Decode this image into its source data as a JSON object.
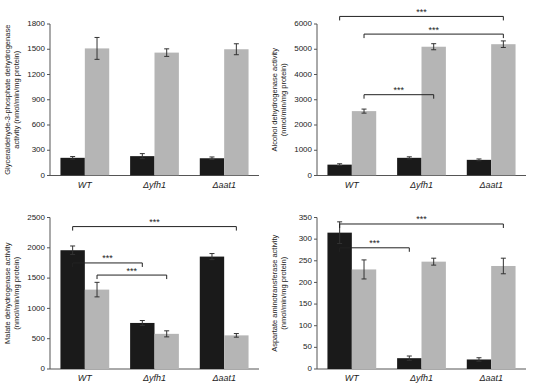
{
  "chart_data": [
    {
      "type": "bar",
      "ylabel": "Glyceraldehyde-3-phosphate dehydrogenase\nactivity (nmol/min/mg protein)",
      "categories": [
        "WT",
        "Δyfh1",
        "Δaat1"
      ],
      "series": [
        {
          "color": "#1a1a1a",
          "values": [
            210,
            230,
            205
          ],
          "errors": [
            15,
            30,
            15
          ]
        },
        {
          "color": "#b5b5b5",
          "values": [
            1510,
            1460,
            1500
          ],
          "errors": [
            130,
            45,
            65
          ]
        }
      ],
      "ylim": [
        0,
        1800
      ],
      "yticks": [
        0,
        300,
        600,
        900,
        1200,
        1500,
        1800
      ]
    },
    {
      "type": "bar",
      "ylabel": "Alcohol dehydrogenase activity\n(nmol/min/mg protein)",
      "categories": [
        "WT",
        "Δyfh1",
        "Δaat1"
      ],
      "series": [
        {
          "color": "#1a1a1a",
          "values": [
            430,
            700,
            620
          ],
          "errors": [
            35,
            40,
            35
          ]
        },
        {
          "color": "#b5b5b5",
          "values": [
            2550,
            5100,
            5200
          ],
          "errors": [
            80,
            120,
            130
          ]
        }
      ],
      "ylim": [
        0,
        6000
      ],
      "yticks": [
        0,
        1000,
        2000,
        3000,
        4000,
        5000,
        6000
      ],
      "annotations": [
        {
          "text": "***",
          "y": 3200,
          "from": {
            "category": 0,
            "series": 1
          },
          "to": {
            "category": 1,
            "series": 1
          }
        },
        {
          "text": "***",
          "y": 5600,
          "from": {
            "category": 0,
            "series": 1
          },
          "to": {
            "category": 2,
            "series": 1
          }
        },
        {
          "text": "***",
          "y": 6300,
          "from": {
            "category": 0,
            "series": 0
          },
          "to": {
            "category": 2,
            "series": 1
          }
        }
      ]
    },
    {
      "type": "bar",
      "ylabel": "Malate dehydrogenase activity\n(nmol/min/mg protein)",
      "categories": [
        "WT",
        "Δyfh1",
        "Δaat1"
      ],
      "series": [
        {
          "color": "#1a1a1a",
          "values": [
            1960,
            760,
            1855
          ],
          "errors": [
            70,
            40,
            50
          ]
        },
        {
          "color": "#b5b5b5",
          "values": [
            1310,
            580,
            555
          ],
          "errors": [
            120,
            50,
            30
          ]
        }
      ],
      "ylim": [
        0,
        2500
      ],
      "yticks": [
        0,
        500,
        1000,
        1500,
        2000,
        2500
      ],
      "annotations": [
        {
          "text": "***",
          "y": 1750,
          "from": {
            "category": 0,
            "series": 0
          },
          "to": {
            "category": 1,
            "series": 0
          }
        },
        {
          "text": "***",
          "y": 1550,
          "from": {
            "category": 0,
            "series": 1
          },
          "to": {
            "category": 1,
            "series": 1
          }
        },
        {
          "text": "***",
          "y": 2350,
          "from": {
            "category": 0,
            "series": 0
          },
          "to": {
            "category": 2,
            "series": 1
          }
        }
      ]
    },
    {
      "type": "bar",
      "ylabel": "Aspartate aminotransferase activity\n(nmol/min/mg protein)",
      "categories": [
        "WT",
        "Δyfh1",
        "Δaat1"
      ],
      "series": [
        {
          "color": "#1a1a1a",
          "values": [
            315,
            25,
            22
          ],
          "errors": [
            25,
            5,
            4
          ]
        },
        {
          "color": "#b5b5b5",
          "values": [
            230,
            248,
            238
          ],
          "errors": [
            22,
            8,
            18
          ]
        }
      ],
      "ylim": [
        0,
        350
      ],
      "yticks": [
        0,
        50,
        100,
        150,
        200,
        250,
        300,
        350
      ],
      "annotations": [
        {
          "text": "***",
          "y": 280,
          "from": {
            "category": 0,
            "series": 0
          },
          "to": {
            "category": 1,
            "series": 0
          }
        },
        {
          "text": "***",
          "y": 335,
          "from": {
            "category": 0,
            "series": 0
          },
          "to": {
            "category": 2,
            "series": 1
          }
        }
      ]
    }
  ]
}
